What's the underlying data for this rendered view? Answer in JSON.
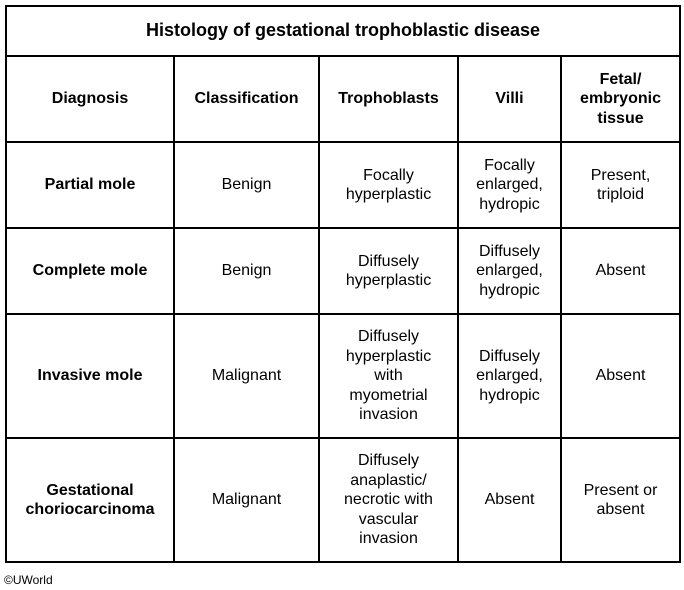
{
  "title": "Histology of gestational trophoblastic disease",
  "headers": {
    "diagnosis": "Diagnosis",
    "classification": "Classification",
    "trophoblasts": "Trophoblasts",
    "villi": "Villi",
    "fetal": "Fetal/\nembryonic\ntissue"
  },
  "rows": [
    {
      "diagnosis": "Partial mole",
      "classification": "Benign",
      "trophoblasts": "Focally\nhyperplastic",
      "villi": "Focally\nenlarged,\nhydropic",
      "fetal": "Present,\ntriploid"
    },
    {
      "diagnosis": "Complete mole",
      "classification": "Benign",
      "trophoblasts": "Diffusely\nhyperplastic",
      "villi": "Diffusely\nenlarged,\nhydropic",
      "fetal": "Absent"
    },
    {
      "diagnosis": "Invasive mole",
      "classification": "Malignant",
      "trophoblasts": "Diffusely\nhyperplastic\nwith\nmyometrial\ninvasion",
      "villi": "Diffusely\nenlarged,\nhydropic",
      "fetal": "Absent"
    },
    {
      "diagnosis": "Gestational\nchoriocarcinoma",
      "classification": "Malignant",
      "trophoblasts": "Diffusely\nanaplastic/\nnecrotic with\nvascular\ninvasion",
      "villi": "Absent",
      "fetal": "Present or\nabsent"
    }
  ],
  "copyright": "©UWorld"
}
